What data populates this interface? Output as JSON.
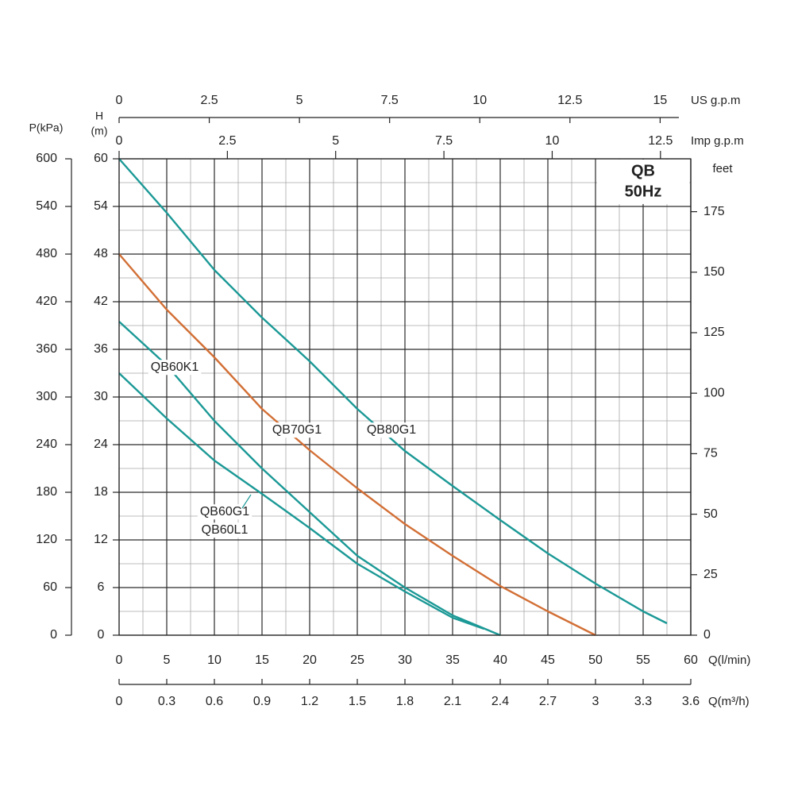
{
  "chart_data": {
    "type": "line",
    "title": "QB",
    "subtitle": "50Hz",
    "xlabel": "Q(l/min)",
    "ylabel": "H",
    "ylabel_unit": "(m)",
    "xlim": [
      0,
      60
    ],
    "xticks": [
      0,
      5,
      10,
      15,
      20,
      25,
      30,
      35,
      40,
      45,
      50,
      55,
      60
    ],
    "ylim": [
      0,
      60
    ],
    "yticks": [
      0,
      6,
      12,
      18,
      24,
      30,
      36,
      42,
      48,
      54,
      60
    ],
    "grid": true,
    "minor_grid": true,
    "series": [
      {
        "labels": [
          "QB80G1"
        ],
        "color": "#1b9996",
        "x": [
          0,
          5,
          10,
          15,
          20,
          25,
          30,
          35,
          40,
          45,
          50,
          55,
          57.5
        ],
        "values": [
          60,
          53.2,
          46,
          40,
          34.5,
          28.5,
          23.2,
          18.8,
          14.5,
          10.3,
          6.5,
          3,
          1.5
        ]
      },
      {
        "labels": [
          "QB70G1"
        ],
        "color": "#d26f35",
        "x": [
          0,
          5,
          10,
          15,
          20,
          25,
          30,
          35,
          40,
          45,
          50
        ],
        "values": [
          48,
          41,
          35,
          28.5,
          23.3,
          18.5,
          14,
          10,
          6.2,
          3,
          0
        ]
      },
      {
        "labels": [
          "QB60K1"
        ],
        "color": "#1b9996",
        "x": [
          0,
          5,
          10,
          15,
          20,
          25,
          30,
          35,
          40
        ],
        "values": [
          39.5,
          34,
          27,
          21,
          15.5,
          10,
          6,
          2.5,
          0
        ]
      },
      {
        "labels": [
          "QB60G1",
          "QB60L1"
        ],
        "color": "#1b9996",
        "x": [
          0,
          5,
          10,
          15,
          20,
          25,
          30,
          35,
          38.3
        ],
        "values": [
          33,
          27.3,
          22,
          17.8,
          13.5,
          9,
          5.5,
          2.2,
          0.8
        ]
      }
    ],
    "axes": [
      {
        "label": "P(kPa)",
        "side": "left",
        "lim": [
          0,
          600
        ],
        "ticks": [
          0,
          60,
          120,
          180,
          240,
          300,
          360,
          420,
          480,
          540,
          600
        ]
      },
      {
        "label": "feet",
        "side": "right",
        "lim": [
          0,
          196.85
        ],
        "ticks": [
          0,
          25,
          50,
          75,
          100,
          125,
          150,
          175
        ]
      },
      {
        "label": "US g.p.m",
        "side": "top",
        "lim": [
          0,
          15.85
        ],
        "ticks": [
          0,
          2.5,
          5,
          7.5,
          10,
          12.5,
          15
        ]
      },
      {
        "label": "Imp g.p.m",
        "side": "top",
        "lim": [
          0,
          13.2
        ],
        "ticks": [
          0,
          2.5,
          5,
          7.5,
          10,
          12.5
        ]
      },
      {
        "label": "Q(m³/h)",
        "side": "bottom",
        "lim": [
          0,
          3.6
        ],
        "ticks": [
          0,
          0.3,
          0.6,
          0.9,
          1.2,
          1.5,
          1.8,
          2.1,
          2.4,
          2.7,
          3,
          3.3,
          3.6
        ]
      }
    ]
  }
}
